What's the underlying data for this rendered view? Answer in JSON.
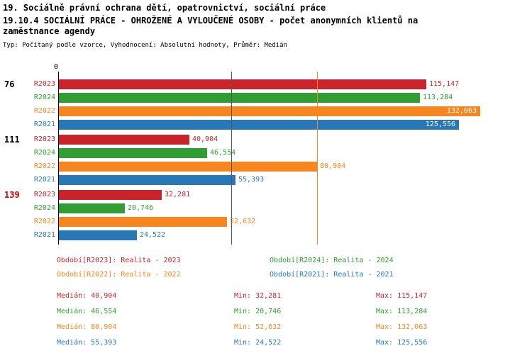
{
  "header": {
    "title_line1": "19. Sociálně právní ochrana dětí, opatrovnictví, sociální práce",
    "title_line2": "19.10.4 SOCIÁLNÍ PRÁCE - OHROŽENÉ A VYLOUČENÉ OSOBY - počet anonymních klientů na zaměstnance agendy",
    "meta_line": "Typ: Počítaný podle vzorce, Vyhodnocení: Absolutní hodnoty, Průměr: Medián"
  },
  "colors": {
    "red": "#c9242b",
    "green": "#2f9e33",
    "orange": "#f6861f",
    "blue": "#2878b8",
    "axis": "#000000",
    "reference_dark": "#555555",
    "highlight_group_label": "#e00000",
    "normal_group_label": "#000000",
    "inside_label": "#ffffff"
  },
  "chart_data": {
    "type": "bar",
    "orientation": "horizontal",
    "x_axis": {
      "zero_label": "0",
      "min": 0,
      "max": 147500,
      "gridlines": false
    },
    "series": [
      {
        "key": "R2023",
        "label": "R2023",
        "color_key": "red"
      },
      {
        "key": "R2024",
        "label": "R2024",
        "color_key": "green"
      },
      {
        "key": "R2022",
        "label": "R2022",
        "color_key": "orange"
      },
      {
        "key": "R2021",
        "label": "R2021",
        "color_key": "blue"
      }
    ],
    "groups": [
      {
        "label": "76",
        "highlighted": false,
        "values": [
          115147,
          113284,
          132063,
          125556
        ],
        "display_values": [
          "115,147",
          "113,284",
          "132,063",
          "125,556"
        ]
      },
      {
        "label": "111",
        "highlighted": false,
        "values": [
          40904,
          46554,
          80904,
          55393
        ],
        "display_values": [
          "40,904",
          "46,554",
          "80,904",
          "55,393"
        ]
      },
      {
        "label": "139",
        "highlighted": true,
        "values": [
          32281,
          20746,
          52632,
          24522
        ],
        "display_values": [
          "32,281",
          "20,746",
          "52,632",
          "24,522"
        ]
      }
    ],
    "reference_lines": [
      {
        "value": 54012,
        "color_key": "reference_dark"
      },
      {
        "value": 80904,
        "color_key": "orange"
      }
    ]
  },
  "legend": {
    "items": [
      {
        "text": "Období[R2023]: Realita - 2023",
        "color_key": "red"
      },
      {
        "text": "Období[R2024]: Realita - 2024",
        "color_key": "green"
      },
      {
        "text": "Období[R2022]: Realita - 2022",
        "color_key": "orange"
      },
      {
        "text": "Období[R2021]: Realita - 2021",
        "color_key": "blue"
      }
    ]
  },
  "stats": {
    "rows": [
      {
        "median": "Medián: 40,904",
        "min": "Min: 32,281",
        "max": "Max: 115,147",
        "color_key": "red"
      },
      {
        "median": "Medián: 46,554",
        "min": "Min: 20,746",
        "max": "Max: 113,284",
        "color_key": "green"
      },
      {
        "median": "Medián: 80,904",
        "min": "Min: 52,632",
        "max": "Max: 132,063",
        "color_key": "orange"
      },
      {
        "median": "Medián: 55,393",
        "min": "Min: 24,522",
        "max": "Max: 125,556",
        "color_key": "blue"
      }
    ]
  }
}
